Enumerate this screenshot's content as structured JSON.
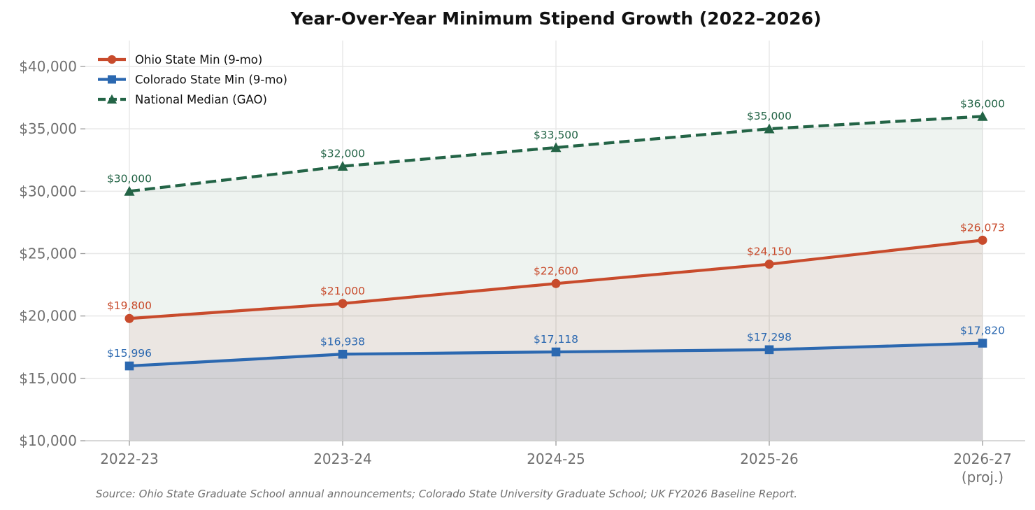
{
  "chart_data": {
    "type": "line",
    "title": "Year-Over-Year Minimum Stipend Growth (2022–2026)",
    "xlabel": "",
    "ylabel": "",
    "categories": [
      "2022-23",
      "2023-24",
      "2024-25",
      "2025-26",
      "2026-27"
    ],
    "category_sublabels": [
      "",
      "",
      "",
      "",
      "(proj.)"
    ],
    "ylim": [
      10000,
      42000
    ],
    "yticks": [
      10000,
      15000,
      20000,
      25000,
      30000,
      35000,
      40000
    ],
    "ytick_labels": [
      "$10,000",
      "$15,000",
      "$20,000",
      "$25,000",
      "$30,000",
      "$35,000",
      "$40,000"
    ],
    "grid": true,
    "legend_position": "top-left",
    "series": [
      {
        "name": "Ohio State Min (9-mo)",
        "values": [
          19800,
          21000,
          22600,
          24150,
          26073
        ],
        "labels": [
          "$19,800",
          "$21,000",
          "$22,600",
          "$24,150",
          "$26,073"
        ],
        "color": "#c84b2c",
        "marker": "circle",
        "line_style": "solid",
        "fill_opacity": 0.07
      },
      {
        "name": "Colorado State Min (9-mo)",
        "values": [
          15996,
          16938,
          17118,
          17298,
          17820
        ],
        "labels": [
          "$15,996",
          "$16,938",
          "$17,118",
          "$17,298",
          "$17,820"
        ],
        "color": "#2b68b0",
        "marker": "square",
        "line_style": "solid",
        "fill_opacity": 0.07
      },
      {
        "name": "National Median (GAO)",
        "values": [
          30000,
          32000,
          33500,
          35000,
          36000
        ],
        "labels": [
          "$30,000",
          "$32,000",
          "$33,500",
          "$35,000",
          "$36,000"
        ],
        "color": "#236446",
        "marker": "triangle",
        "line_style": "dashed",
        "fill_opacity": 0.08
      }
    ],
    "source_note": "Source: Ohio State Graduate School annual announcements; Colorado State University Graduate School; UK FY2026 Baseline Report."
  }
}
